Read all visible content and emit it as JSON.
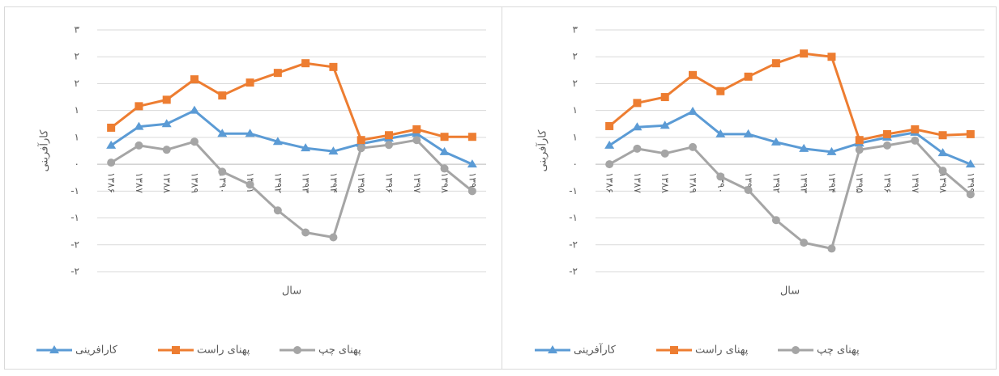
{
  "chart_data": [
    {
      "type": "line",
      "y_label": "کارآفرینی",
      "x_label": "سال",
      "categories": [
        "۱۳۸۶",
        "۱۳۸۷",
        "۱۳۸۸",
        "۱۳۸۹",
        "۱۳۹۰",
        "۱۳۹۱",
        "۱۳۹۲",
        "۱۳۹۳",
        "۱۳۹۴",
        "۱۳۹۵",
        "۱۳۹۶",
        "۱۳۹۷",
        "۱۳۹۸",
        "۱۳۹۹"
      ],
      "series": [
        {
          "name": "کارافرینی",
          "color": "#5b9bd5",
          "marker": "triangle",
          "values": [
            0.35,
            0.7,
            0.75,
            1,
            0.57,
            0.57,
            0.42,
            0.3,
            0.24,
            0.38,
            0.48,
            0.57,
            0.23,
            0
          ]
        },
        {
          "name": "پهنای راست",
          "color": "#ed7d31",
          "marker": "square",
          "values": [
            0.68,
            1.08,
            1.2,
            1.58,
            1.28,
            1.52,
            1.7,
            1.88,
            1.81,
            0.45,
            0.54,
            0.65,
            0.51,
            0.51
          ]
        },
        {
          "name": "پهنای چپ",
          "color": "#a5a5a5",
          "marker": "circle",
          "values": [
            0.03,
            0.35,
            0.27,
            0.42,
            -0.14,
            -0.38,
            -0.86,
            -1.27,
            -1.36,
            0.3,
            0.36,
            0.45,
            -0.08,
            -0.5
          ]
        }
      ],
      "ylim": [
        -2,
        2.5
      ],
      "yticks": [
        {
          "value": 2.5,
          "label": "۳"
        },
        {
          "value": 2,
          "label": "۲"
        },
        {
          "value": 1.5,
          "label": "۲"
        },
        {
          "value": 1,
          "label": "۱"
        },
        {
          "value": 0.5,
          "label": "۱"
        },
        {
          "value": 0,
          "label": "۰"
        },
        {
          "value": -0.5,
          "label": "-۱"
        },
        {
          "value": -1,
          "label": "-۱"
        },
        {
          "value": -1.5,
          "label": "-۲"
        },
        {
          "value": -2,
          "label": "-۲"
        }
      ],
      "grid": true,
      "legend": "bottom"
    },
    {
      "type": "line",
      "y_label": "کارآفرینی",
      "x_label": "سال",
      "categories": [
        "۱۳۸۶",
        "۱۳۸۷",
        "۱۳۸۸",
        "۱۳۸۹",
        "۱۳۹۰",
        "۱۳۹۱",
        "۱۳۹۲",
        "۱۳۹۳",
        "۱۳۹۴",
        "۱۳۹۵",
        "۱۳۹۶",
        "۱۳۹۷",
        "۱۳۹۸",
        "۱۳۹۹"
      ],
      "series": [
        {
          "name": "کارآفرینی",
          "color": "#5b9bd5",
          "marker": "triangle",
          "values": [
            0.35,
            0.69,
            0.72,
            0.98,
            0.56,
            0.56,
            0.41,
            0.29,
            0.23,
            0.39,
            0.5,
            0.59,
            0.21,
            0
          ]
        },
        {
          "name": "پهنای راست",
          "color": "#ed7d31",
          "marker": "square",
          "values": [
            0.71,
            1.14,
            1.25,
            1.66,
            1.36,
            1.63,
            1.88,
            2.06,
            2,
            0.45,
            0.56,
            0.65,
            0.54,
            0.56
          ]
        },
        {
          "name": "پهنای چپ",
          "color": "#a5a5a5",
          "marker": "circle",
          "values": [
            0,
            0.29,
            0.2,
            0.32,
            -0.23,
            -0.48,
            -1.04,
            -1.46,
            -1.57,
            0.27,
            0.35,
            0.44,
            -0.12,
            -0.56
          ]
        }
      ],
      "ylim": [
        -2,
        2.5
      ],
      "yticks": [
        {
          "value": 2.5,
          "label": "۳"
        },
        {
          "value": 2,
          "label": "۲"
        },
        {
          "value": 1.5,
          "label": "۲"
        },
        {
          "value": 1,
          "label": "۱"
        },
        {
          "value": 0.5,
          "label": "۱"
        },
        {
          "value": 0,
          "label": "۰"
        },
        {
          "value": -0.5,
          "label": "-۱"
        },
        {
          "value": -1,
          "label": "-۱"
        },
        {
          "value": -1.5,
          "label": "-۲"
        },
        {
          "value": -2,
          "label": "-۲"
        }
      ],
      "grid": true,
      "legend": "bottom"
    }
  ]
}
